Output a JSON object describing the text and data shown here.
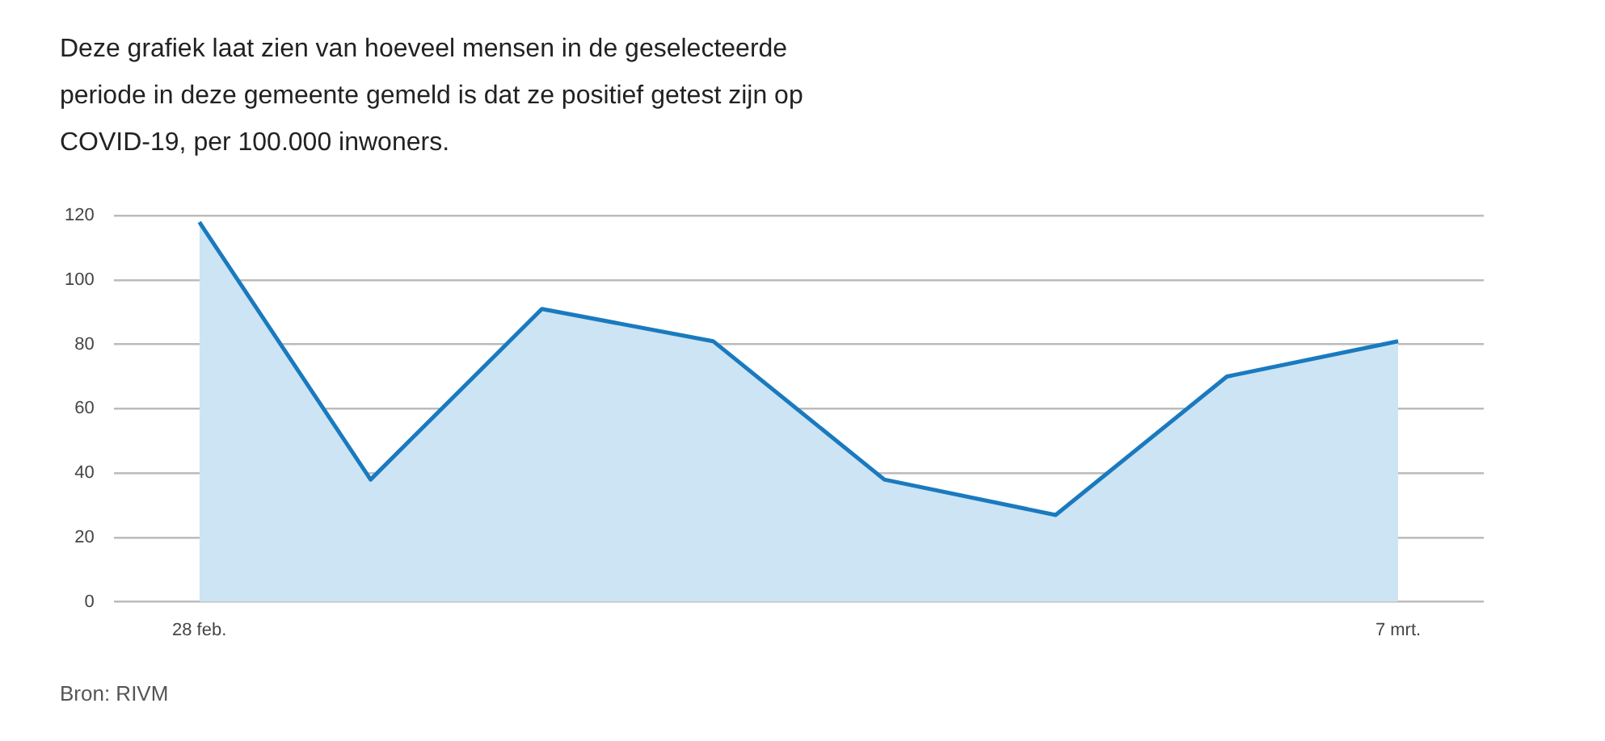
{
  "chart_data": {
    "type": "area",
    "title": "Deze grafiek laat zien van hoeveel mensen in de geselecteerde periode in deze gemeente gemeld is dat ze positief getest zijn op COVID-19, per 100.000 inwoners.",
    "categories": [
      "28 feb.",
      null,
      null,
      null,
      null,
      null,
      null,
      "7 mrt."
    ],
    "series": [
      {
        "color": "#1a7abf",
        "values": [
          118,
          38,
          91,
          81,
          38,
          27,
          70,
          81
        ]
      }
    ],
    "ylim": [
      0,
      120
    ],
    "yticks": [
      0,
      20,
      40,
      60,
      80,
      100,
      120
    ],
    "grid": "y",
    "legend": false,
    "annotations": [
      "Bron: RIVM"
    ]
  }
}
